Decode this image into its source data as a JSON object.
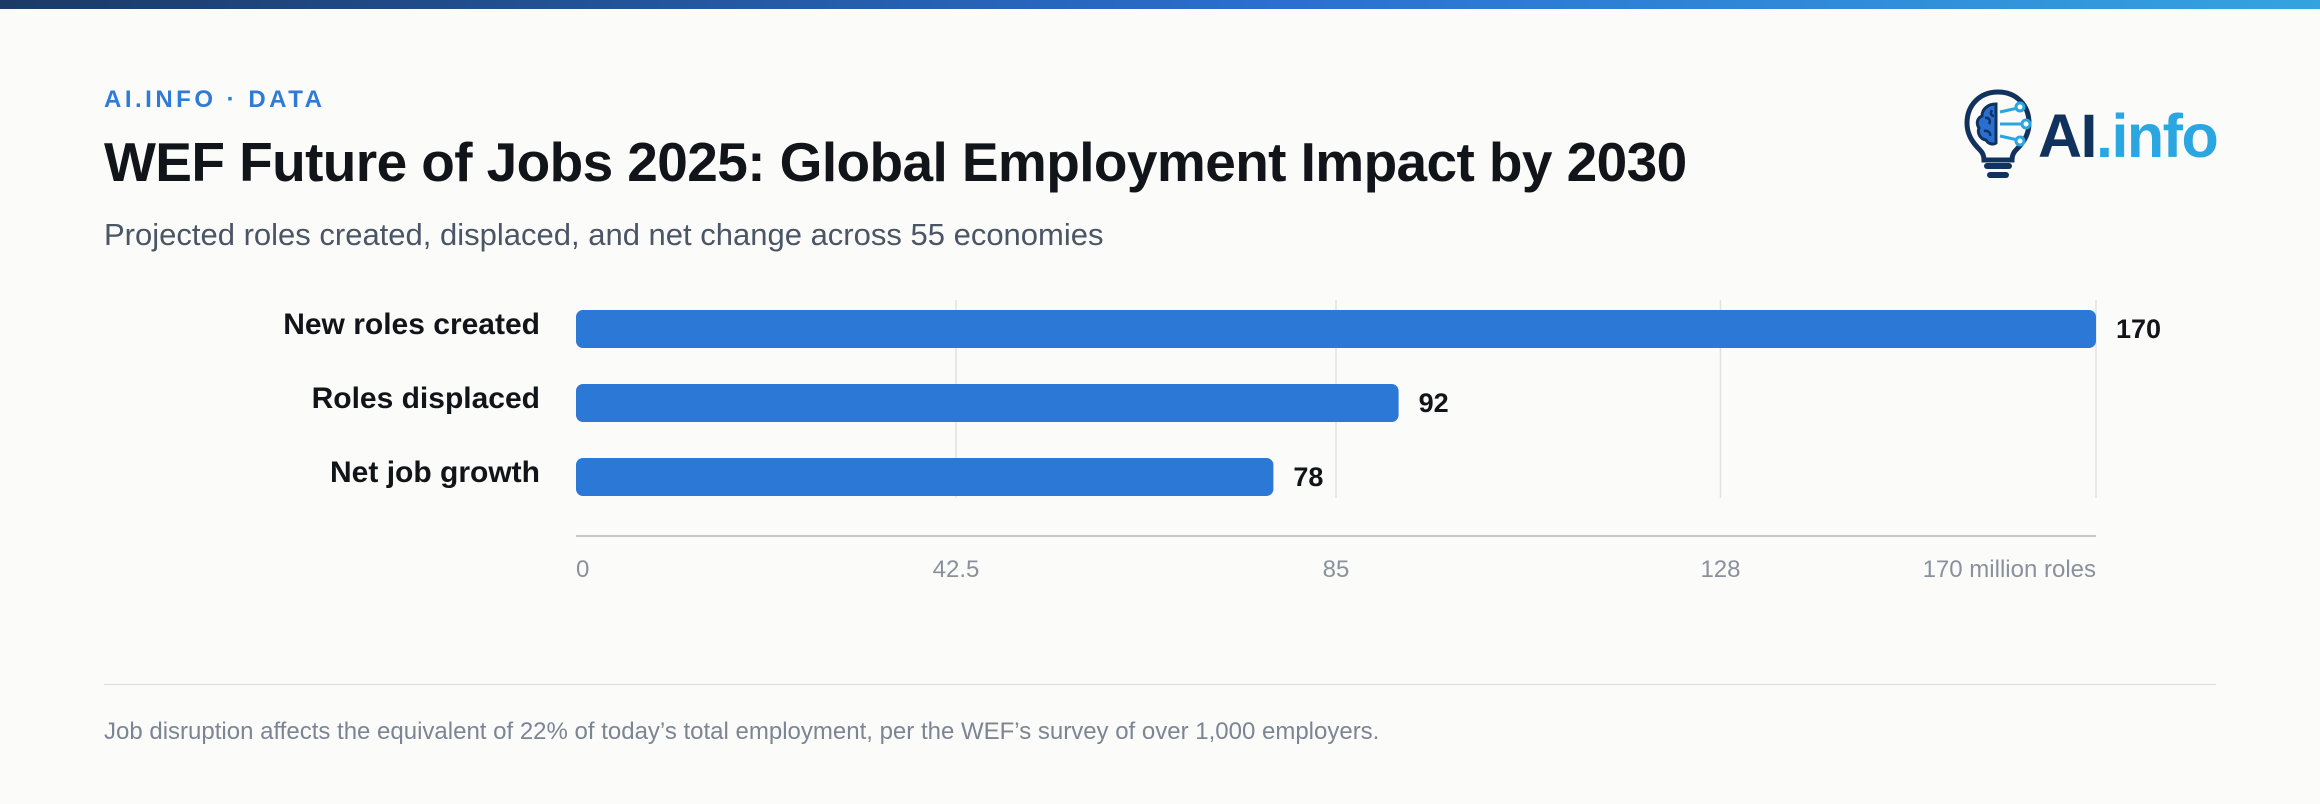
{
  "header": {
    "eyebrow": "AI.INFO · DATA",
    "title": "WEF Future of Jobs 2025: Global Employment Impact by 2030",
    "subtitle": "Projected roles created, displaced, and net change across 55 economies"
  },
  "logo": {
    "text_main": "AI",
    "text_accent": ".info",
    "icon": "lightbulb-brain-icon"
  },
  "colors": {
    "accent": "#2f7bd8",
    "bar": "#2b78d6",
    "logo_dark": "#12325e",
    "logo_light": "#2aa6e0"
  },
  "chart_data": {
    "type": "bar",
    "orientation": "horizontal",
    "categories": [
      "New roles created",
      "Roles displaced",
      "Net job growth"
    ],
    "values": [
      170,
      92,
      78
    ],
    "data_labels": [
      "170",
      "92",
      "78"
    ],
    "xlim": [
      0,
      170
    ],
    "x_ticks": [
      0,
      42.5,
      85,
      128,
      170
    ],
    "x_tick_labels": [
      "0",
      "42.5",
      "85",
      "128",
      "170 million roles"
    ],
    "grid": true
  },
  "footer": {
    "note": "Job disruption affects the equivalent of 22% of today’s total employment, per the WEF’s survey of over 1,000 employers."
  }
}
